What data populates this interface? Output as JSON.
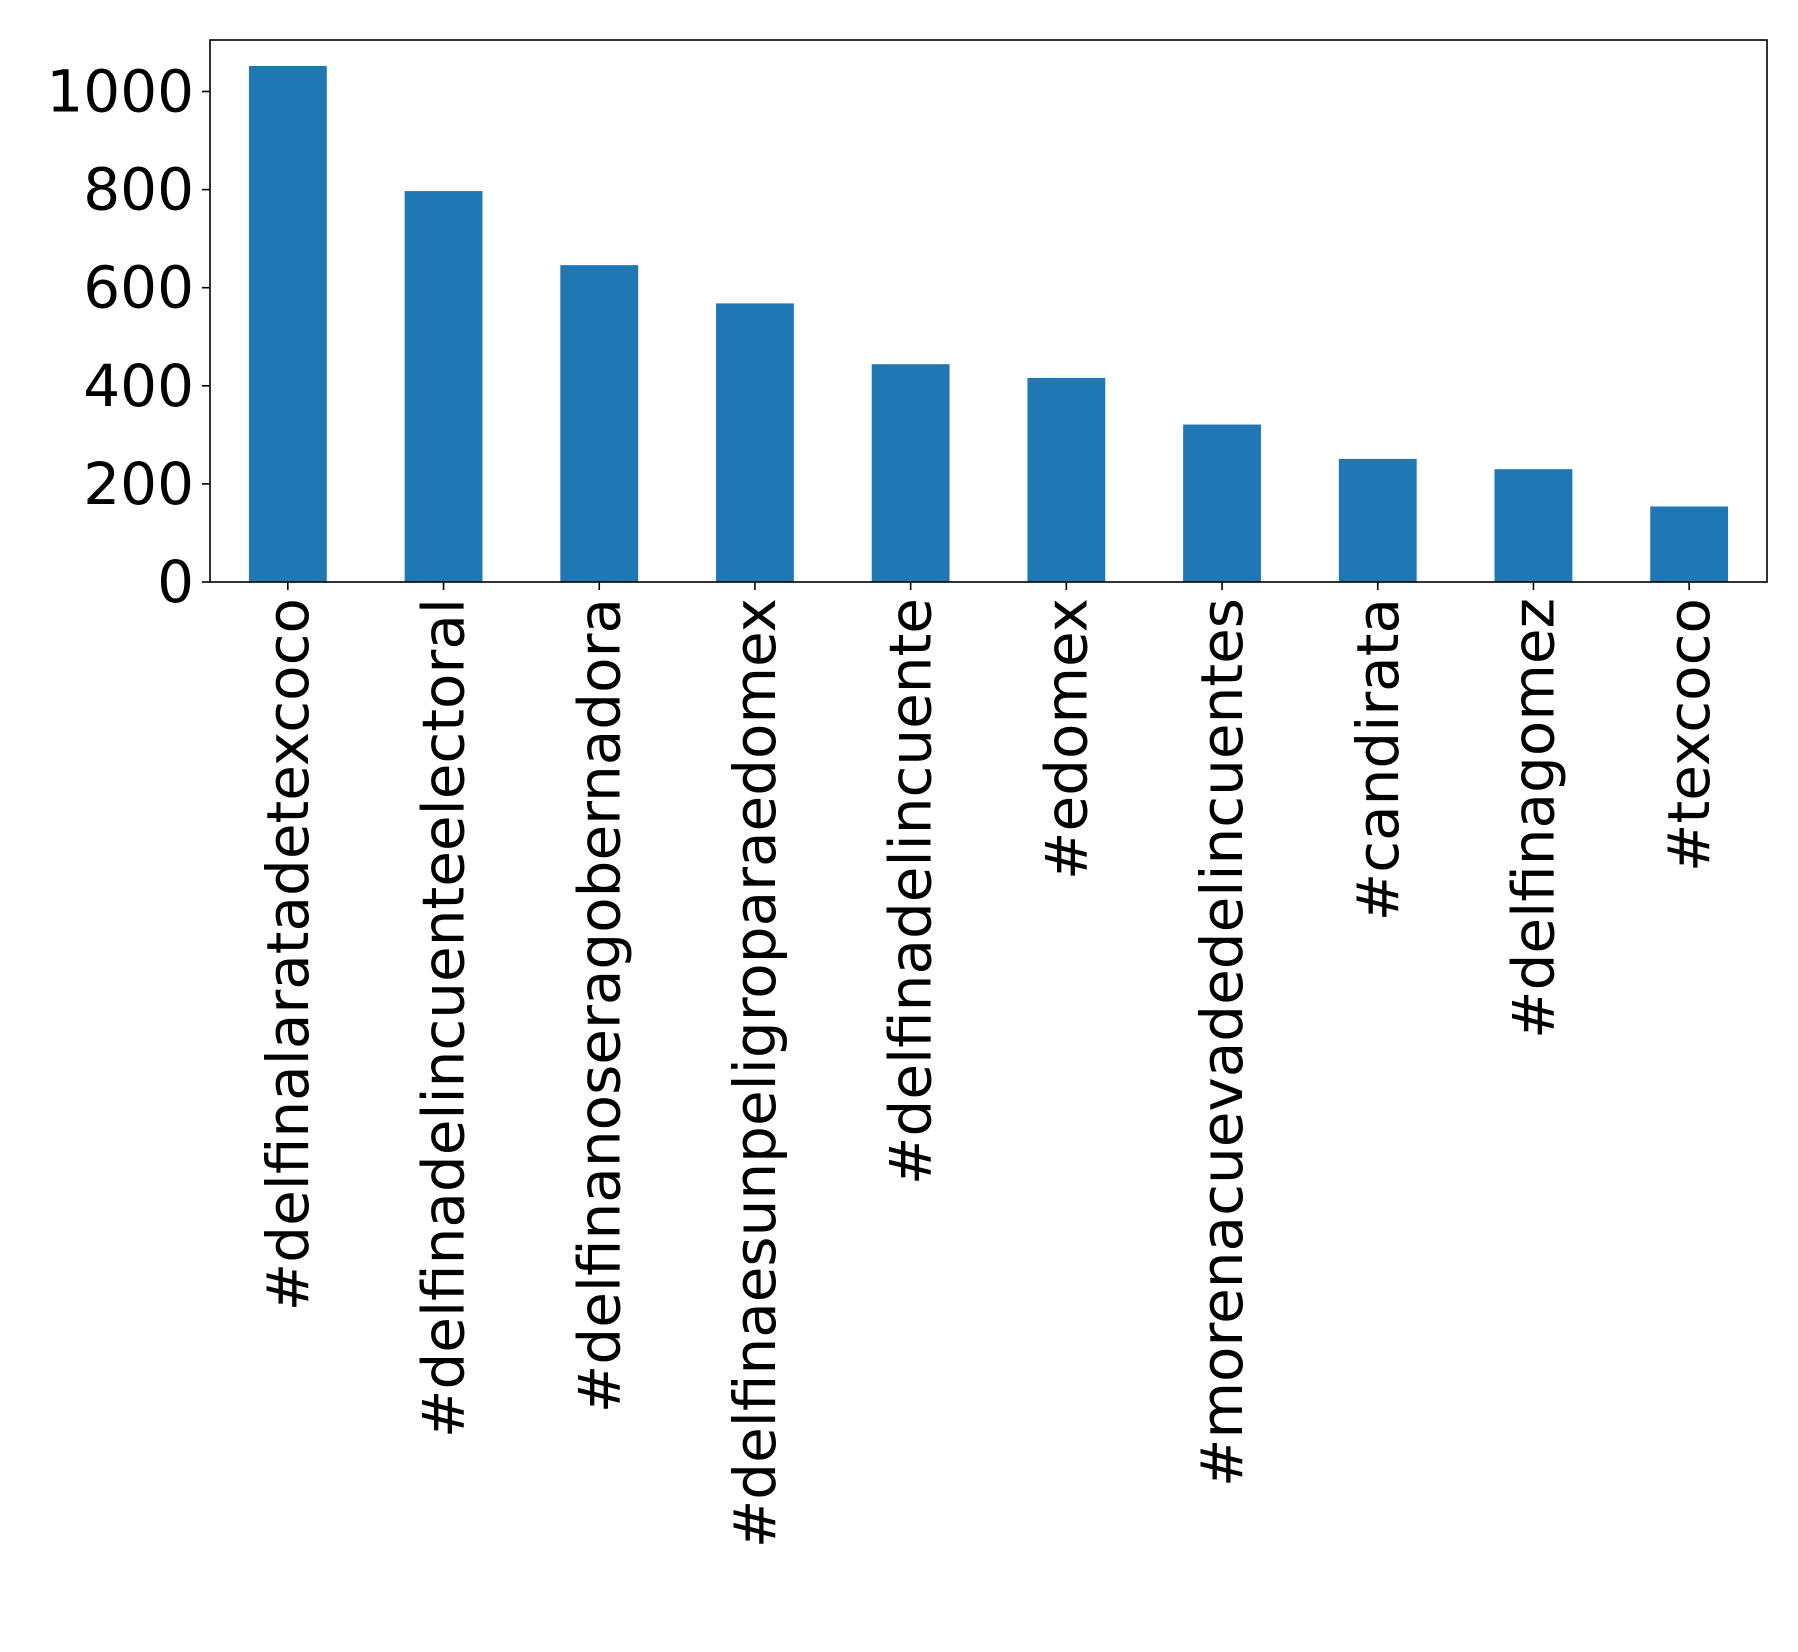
{
  "chart_data": {
    "type": "bar",
    "title": "",
    "xlabel": "",
    "ylabel": "",
    "categories": [
      "#delfinalaratadetexcoco",
      "#delfinadelincuenteelectoral",
      "#delfinanoseragobernadora",
      "#delfinaesunpeligroparaedomex",
      "#delfinadelincuente",
      "#edomex",
      "#morenacuevadedelincuentes",
      "#candirata",
      "#delfinagomez",
      "#texcoco"
    ],
    "values": [
      1052,
      797,
      646,
      568,
      444,
      416,
      321,
      251,
      230,
      154
    ],
    "ylim": [
      0,
      1105
    ],
    "yticks": [
      0,
      200,
      400,
      600,
      800,
      1000
    ],
    "bar_color": "#1f77b4",
    "grid": false,
    "legend": "none"
  }
}
